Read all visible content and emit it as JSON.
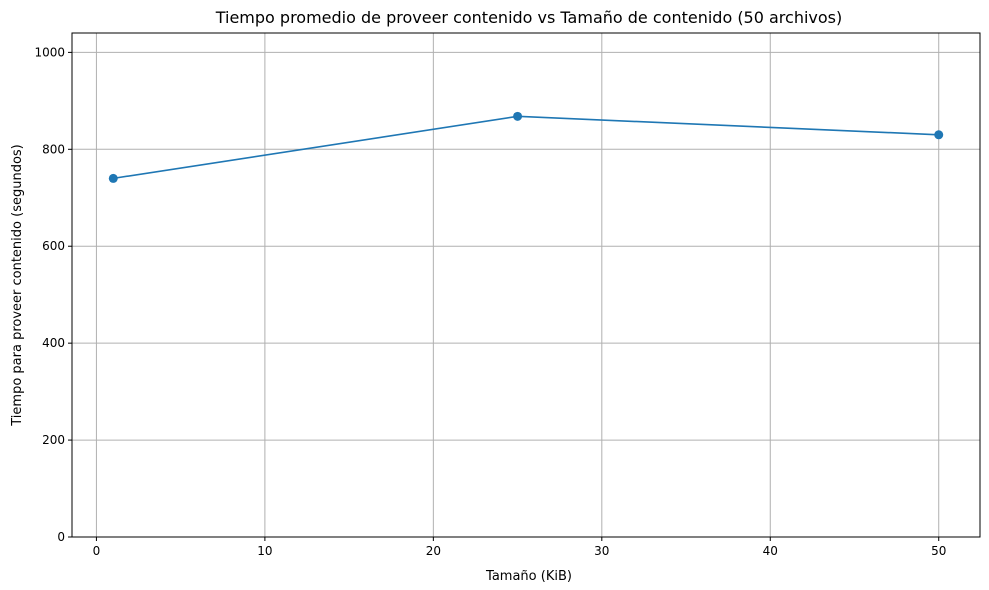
{
  "chart_data": {
    "type": "line",
    "title": "Tiempo promedio de proveer contenido vs Tamaño de contenido (50 archivos)",
    "xlabel": "Tamaño (KiB)",
    "ylabel": "Tiempo para proveer contenido (segundos)",
    "xlim": [
      -1.45,
      52.45
    ],
    "ylim": [
      0,
      1040
    ],
    "xticks": [
      0,
      10,
      20,
      30,
      40,
      50
    ],
    "yticks": [
      0,
      200,
      400,
      600,
      800,
      1000
    ],
    "grid": true,
    "series": [
      {
        "x": [
          1,
          25,
          50
        ],
        "y": [
          740,
          868,
          830
        ],
        "color": "#1f77b4",
        "marker": "circle"
      }
    ]
  }
}
